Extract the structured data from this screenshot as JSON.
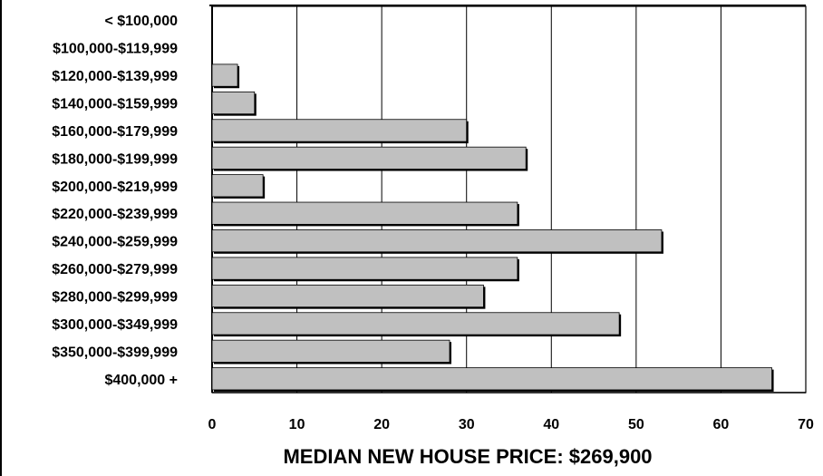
{
  "chart_data": {
    "type": "bar",
    "orientation": "horizontal",
    "categories": [
      "< $100,000",
      "$100,000-$119,999",
      "$120,000-$139,999",
      "$140,000-$159,999",
      "$160,000-$179,999",
      "$180,000-$199,999",
      "$200,000-$219,999",
      "$220,000-$239,999",
      "$240,000-$259,999",
      "$260,000-$279,999",
      "$280,000-$299,999",
      "$300,000-$349,999",
      "$350,000-$399,999",
      "$400,000 +"
    ],
    "values": [
      0,
      0,
      3,
      5,
      30,
      37,
      6,
      36,
      53,
      36,
      32,
      48,
      28,
      66
    ],
    "title": "",
    "xlabel": "MEDIAN NEW HOUSE PRICE: $269,900",
    "ylabel": "",
    "xlim": [
      0,
      70
    ],
    "xticks": [
      0,
      10,
      20,
      30,
      40,
      50,
      60,
      70
    ],
    "grid": "vertical",
    "bar_color": "#c0c0c0"
  }
}
